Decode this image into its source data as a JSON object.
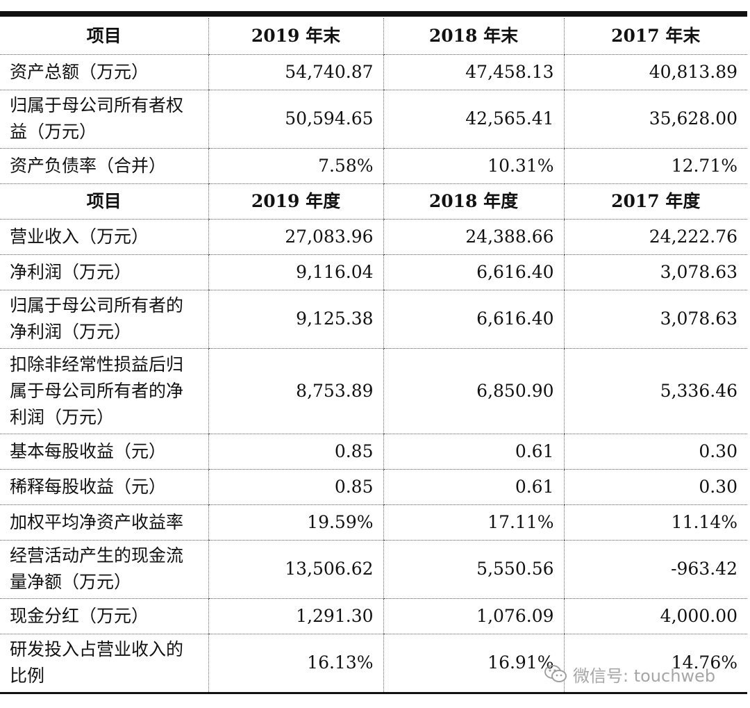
{
  "table": {
    "balance_header": [
      "项目",
      "2019 年末",
      "2018 年末",
      "2017 年末"
    ],
    "balance_rows": [
      {
        "label": "资产总额（万元）",
        "v2019": "54,740.87",
        "v2018": "47,458.13",
        "v2017": "40,813.89"
      },
      {
        "label": "归属于母公司所有者权益（万元）",
        "v2019": "50,594.65",
        "v2018": "42,565.41",
        "v2017": "35,628.00"
      },
      {
        "label": "资产负债率（合并）",
        "v2019": "7.58%",
        "v2018": "10.31%",
        "v2017": "12.71%"
      }
    ],
    "income_header": [
      "项目",
      "2019 年度",
      "2018 年度",
      "2017 年度"
    ],
    "income_rows": [
      {
        "label": "营业收入（万元）",
        "v2019": "27,083.96",
        "v2018": "24,388.66",
        "v2017": "24,222.76"
      },
      {
        "label": "净利润（万元）",
        "v2019": "9,116.04",
        "v2018": "6,616.40",
        "v2017": "3,078.63"
      },
      {
        "label": "归属于母公司所有者的净利润（万元）",
        "v2019": "9,125.38",
        "v2018": "6,616.40",
        "v2017": "3,078.63"
      },
      {
        "label": "扣除非经常性损益后归属于母公司所有者的净利润（万元）",
        "v2019": "8,753.89",
        "v2018": "6,850.90",
        "v2017": "5,336.46"
      },
      {
        "label": "基本每股收益（元）",
        "v2019": "0.85",
        "v2018": "0.61",
        "v2017": "0.30"
      },
      {
        "label": "稀释每股收益（元）",
        "v2019": "0.85",
        "v2018": "0.61",
        "v2017": "0.30"
      },
      {
        "label": "加权平均净资产收益率",
        "v2019": "19.59%",
        "v2018": "17.11%",
        "v2017": "11.14%"
      },
      {
        "label": "经营活动产生的现金流量净额（万元）",
        "v2019": "13,506.62",
        "v2018": "5,550.56",
        "v2017": "-963.42"
      },
      {
        "label": "现金分红（万元）",
        "v2019": "1,291.30",
        "v2018": "1,076.09",
        "v2017": "4,000.00"
      },
      {
        "label": "研发投入占营业收入的比例",
        "v2019": "16.13%",
        "v2018": "16.91%",
        "v2017": "14.76%"
      }
    ]
  },
  "watermark": {
    "text": "微信号: touchweb",
    "icon": "wechat-icon"
  }
}
